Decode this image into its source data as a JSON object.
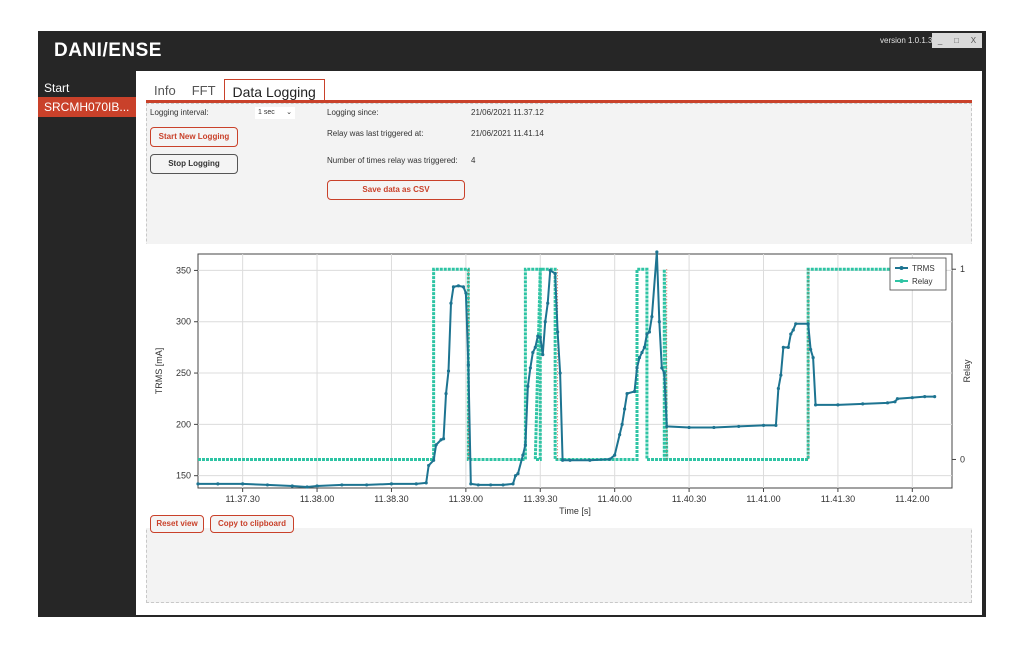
{
  "app": {
    "logo": "DANI/ENSE",
    "version": "version 1.0.1.3",
    "window_buttons": [
      "_",
      "□",
      "X"
    ]
  },
  "sidebar": {
    "start": "Start",
    "device": "SRCMH070IB..."
  },
  "tabs": [
    {
      "label": "Info",
      "active": false
    },
    {
      "label": "FFT",
      "active": false
    },
    {
      "label": "Data Logging",
      "active": true
    }
  ],
  "logging": {
    "interval_label": "Logging interval:",
    "interval_value": "1 sec",
    "since_label": "Logging since:",
    "since_value": "21/06/2021 11.37.12",
    "relay_last_label": "Relay was last triggered at:",
    "relay_last_value": "21/06/2021 11.41.14",
    "relay_count_label": "Number of times relay was triggered:",
    "relay_count_value": "4",
    "start_button": "Start New Logging",
    "stop_button": "Stop Logging",
    "save_button": "Save data as CSV",
    "reset_button": "Reset view",
    "copy_button": "Copy to clipboard"
  },
  "colors": {
    "accent": "#c9412a",
    "trms": "#1d7491",
    "relay": "#2ec4a4",
    "background": "#262626"
  },
  "chart_data": {
    "type": "line",
    "xlabel": "Time [s]",
    "ylabel": "TRMS [mA]",
    "y2label": "Relay",
    "x_ticks": [
      "11.37.30",
      "11.38.00",
      "11.38.30",
      "11.39.00",
      "11.39.30",
      "11.40.00",
      "11.40.30",
      "11.41.00",
      "11.41.30",
      "11.42.00"
    ],
    "x_tick_seconds": [
      30,
      60,
      90,
      120,
      150,
      180,
      210,
      240,
      270,
      300
    ],
    "xlim_seconds": [
      12,
      316
    ],
    "y_ticks": [
      150,
      200,
      250,
      300,
      350
    ],
    "ylim": [
      138,
      366
    ],
    "y2_ticks": [
      "0",
      "1"
    ],
    "y2lim": [
      -0.15,
      1.08
    ],
    "grid": true,
    "legend_position": "top-right",
    "series": [
      {
        "name": "TRMS",
        "axis": "left",
        "points": [
          [
            12,
            142
          ],
          [
            20,
            142
          ],
          [
            30,
            142
          ],
          [
            40,
            141
          ],
          [
            50,
            140
          ],
          [
            56,
            139
          ],
          [
            60,
            140
          ],
          [
            70,
            141
          ],
          [
            80,
            141
          ],
          [
            90,
            142
          ],
          [
            100,
            142
          ],
          [
            104,
            143
          ],
          [
            105,
            160
          ],
          [
            107,
            165
          ],
          [
            108,
            180
          ],
          [
            110,
            185
          ],
          [
            111,
            186
          ],
          [
            112,
            230
          ],
          [
            113,
            252
          ],
          [
            114,
            318
          ],
          [
            115,
            334
          ],
          [
            117,
            335
          ],
          [
            119,
            334
          ],
          [
            120,
            328
          ],
          [
            121,
            258
          ],
          [
            122,
            142
          ],
          [
            125,
            141
          ],
          [
            130,
            141
          ],
          [
            135,
            141
          ],
          [
            139,
            142
          ],
          [
            140,
            150
          ],
          [
            141,
            152
          ],
          [
            143,
            170
          ],
          [
            144,
            180
          ],
          [
            145,
            237
          ],
          [
            146,
            255
          ],
          [
            147,
            270
          ],
          [
            148,
            275
          ],
          [
            149,
            286
          ],
          [
            150,
            285
          ],
          [
            151,
            268
          ],
          [
            152,
            300
          ],
          [
            153,
            318
          ],
          [
            154,
            350
          ],
          [
            156,
            347
          ],
          [
            157,
            290
          ],
          [
            158,
            250
          ],
          [
            159,
            165
          ],
          [
            162,
            165
          ],
          [
            170,
            165
          ],
          [
            178,
            166
          ],
          [
            180,
            170
          ],
          [
            182,
            190
          ],
          [
            183,
            200
          ],
          [
            184,
            215
          ],
          [
            185,
            230
          ],
          [
            188,
            232
          ],
          [
            189,
            255
          ],
          [
            190,
            265
          ],
          [
            191,
            270
          ],
          [
            192,
            275
          ],
          [
            193,
            288
          ],
          [
            194,
            290
          ],
          [
            195,
            305
          ],
          [
            197,
            368
          ],
          [
            198,
            300
          ],
          [
            199,
            255
          ],
          [
            200,
            250
          ],
          [
            201,
            198
          ],
          [
            210,
            197
          ],
          [
            220,
            197
          ],
          [
            230,
            198
          ],
          [
            240,
            199
          ],
          [
            245,
            199
          ],
          [
            246,
            235
          ],
          [
            247,
            248
          ],
          [
            248,
            275
          ],
          [
            250,
            275
          ],
          [
            251,
            288
          ],
          [
            252,
            292
          ],
          [
            253,
            298
          ],
          [
            258,
            298
          ],
          [
            259,
            273
          ],
          [
            260,
            265
          ],
          [
            261,
            219
          ],
          [
            270,
            219
          ],
          [
            280,
            220
          ],
          [
            290,
            221
          ],
          [
            293,
            222
          ],
          [
            294,
            225
          ],
          [
            300,
            226
          ],
          [
            305,
            227
          ],
          [
            309,
            227
          ]
        ]
      },
      {
        "name": "Relay",
        "axis": "right",
        "points": [
          [
            12,
            0
          ],
          [
            107,
            0
          ],
          [
            107,
            1
          ],
          [
            114,
            1
          ],
          [
            114,
            1
          ],
          [
            121,
            1
          ],
          [
            121,
            0
          ],
          [
            144,
            0
          ],
          [
            144,
            1
          ],
          [
            148,
            1
          ],
          [
            150,
            1
          ],
          [
            148,
            0
          ],
          [
            148,
            0
          ],
          [
            150,
            0
          ],
          [
            150,
            1
          ],
          [
            156,
            1
          ],
          [
            156,
            0
          ],
          [
            185,
            0
          ],
          [
            189,
            0
          ],
          [
            189,
            1
          ],
          [
            193,
            1
          ],
          [
            193,
            0
          ],
          [
            200,
            0
          ],
          [
            200,
            1
          ],
          [
            201,
            0
          ],
          [
            258,
            0
          ],
          [
            258,
            1
          ],
          [
            260,
            1
          ],
          [
            309,
            1
          ]
        ]
      }
    ]
  }
}
